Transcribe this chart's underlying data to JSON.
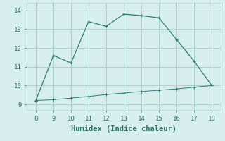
{
  "line1_x": [
    8,
    9,
    10,
    11,
    12,
    13,
    14,
    15,
    16,
    17,
    18
  ],
  "line1_y": [
    9.2,
    11.6,
    11.2,
    13.4,
    13.15,
    13.8,
    13.72,
    13.6,
    12.45,
    11.3,
    10.0
  ],
  "line2_x": [
    8,
    9,
    10,
    11,
    12,
    13,
    14,
    15,
    16,
    17,
    18
  ],
  "line2_y": [
    9.2,
    9.25,
    9.33,
    9.42,
    9.52,
    9.6,
    9.68,
    9.75,
    9.82,
    9.91,
    10.0
  ],
  "line_color": "#2d7d74",
  "bg_color": "#d6efec",
  "grid_color": "#aad4cf",
  "xlabel": "Humidex (Indice chaleur)",
  "xlim": [
    7.5,
    18.5
  ],
  "ylim": [
    8.7,
    14.4
  ],
  "xticks": [
    8,
    9,
    10,
    11,
    12,
    13,
    14,
    15,
    16,
    17,
    18
  ],
  "yticks": [
    9,
    10,
    11,
    12,
    13,
    14
  ],
  "font_color": "#2d6e65",
  "xlabel_fontsize": 7.5,
  "tick_fontsize": 6.5
}
